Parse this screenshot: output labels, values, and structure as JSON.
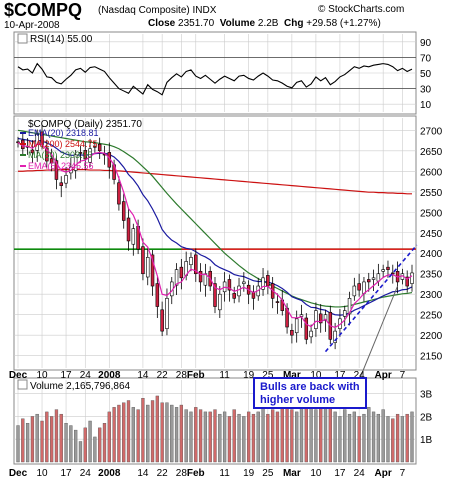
{
  "header": {
    "symbol": "$COMPQ",
    "name": "(Nasdaq Composite)",
    "exchange": "INDX",
    "date": "10-Apr-2008",
    "close_label": "Close",
    "close": "2351.70",
    "volume_label": "Volume",
    "volume": "2.2B",
    "chg_label": "Chg",
    "chg": "+29.58 (+1.27%)",
    "credit": "© StockCharts.com"
  },
  "rsi_panel": {
    "label": "RSI(14) 55.00",
    "ticks": [
      90,
      70,
      50,
      30,
      10
    ],
    "ylim": [
      0,
      100
    ]
  },
  "price_panel": {
    "label": "$COMPQ (Daily) 2351.70",
    "ticks": [
      2700,
      2650,
      2600,
      2550,
      2500,
      2450,
      2400,
      2350,
      2300,
      2250,
      2200,
      2150
    ],
    "ylim": [
      2120,
      2730
    ],
    "legend": [
      {
        "label": "EMA(20) 2318.81",
        "color": "#1a1aa0"
      },
      {
        "label": "MA(200) 2544.75",
        "color": "#cc1111"
      },
      {
        "label": "MA(50) 2303.95",
        "color": "#2d7a2d"
      },
      {
        "label": "EMA(5) 2345.56",
        "color": "#e020b0"
      }
    ],
    "annotation": "Bulls are back with higher volume"
  },
  "volume_panel": {
    "label": "Volume 2,165,796,864",
    "ticks": [
      "3B",
      "2B",
      "1B"
    ],
    "tick_values": [
      3,
      2,
      1
    ],
    "ylim": [
      0,
      3.6
    ]
  },
  "x_labels": [
    {
      "i": 0,
      "t": "Dec"
    },
    {
      "i": 5,
      "t": "10"
    },
    {
      "i": 10,
      "t": "17"
    },
    {
      "i": 14,
      "t": "24"
    },
    {
      "i": 19,
      "t": "2008"
    },
    {
      "i": 26,
      "t": "14"
    },
    {
      "i": 30,
      "t": "22"
    },
    {
      "i": 34,
      "t": "28"
    },
    {
      "i": 37,
      "t": "Feb"
    },
    {
      "i": 43,
      "t": "11"
    },
    {
      "i": 48,
      "t": "19"
    },
    {
      "i": 52,
      "t": "25"
    },
    {
      "i": 57,
      "t": "Mar"
    },
    {
      "i": 62,
      "t": "10"
    },
    {
      "i": 67,
      "t": "17"
    },
    {
      "i": 71,
      "t": "24"
    },
    {
      "i": 76,
      "t": "Apr"
    },
    {
      "i": 80,
      "t": "7"
    }
  ],
  "colors": {
    "up": "#ffffff",
    "down": "#cc2040",
    "grid": "#cccccc",
    "support": "#0d8a0d",
    "resistance": "#dd2222",
    "trend": "#1a1acc",
    "vol_up": "#9a9a9a",
    "vol_down": "#d06a6a"
  },
  "chart_data": {
    "type": "candlestick",
    "closes": [
      2670,
      2655,
      2660,
      2645,
      2690,
      2665,
      2625,
      2620,
      2580,
      2565,
      2590,
      2610,
      2640,
      2645,
      2630,
      2655,
      2660,
      2650,
      2640,
      2610,
      2580,
      2520,
      2480,
      2430,
      2460,
      2410,
      2350,
      2390,
      2320,
      2270,
      2210,
      2290,
      2330,
      2360,
      2340,
      2380,
      2390,
      2350,
      2330,
      2350,
      2320,
      2270,
      2300,
      2330,
      2310,
      2290,
      2320,
      2330,
      2300,
      2290,
      2320,
      2340,
      2320,
      2290,
      2280,
      2260,
      2220,
      2200,
      2240,
      2250,
      2190,
      2210,
      2260,
      2230,
      2250,
      2190,
      2210,
      2240,
      2260,
      2290,
      2320,
      2310,
      2330,
      2330,
      2340,
      2350,
      2360,
      2360,
      2350,
      2330,
      2350,
      2320,
      2352
    ],
    "resistance": 2410,
    "support_line_y": 2410,
    "trendline": {
      "from": {
        "i": 64,
        "y": 2160
      },
      "to": {
        "i": 83,
        "y": 2420
      }
    },
    "ema5": [
      2670,
      2662,
      2661,
      2656,
      2667,
      2666,
      2652,
      2641,
      2620,
      2602,
      2598,
      2602,
      2615,
      2625,
      2627,
      2636,
      2644,
      2646,
      2644,
      2633,
      2615,
      2583,
      2549,
      2509,
      2493,
      2465,
      2427,
      2415,
      2383,
      2345,
      2300,
      2297,
      2308,
      2325,
      2330,
      2347,
      2361,
      2357,
      2348,
      2349,
      2339,
      2316,
      2311,
      2317,
      2315,
      2307,
      2311,
      2317,
      2311,
      2304,
      2309,
      2319,
      2319,
      2309,
      2299,
      2286,
      2264,
      2243,
      2242,
      2245,
      2227,
      2221,
      2234,
      2233,
      2239,
      2223,
      2219,
      2226,
      2237,
      2255,
      2277,
      2288,
      2302,
      2311,
      2321,
      2331,
      2341,
      2347,
      2348,
      2342,
      2345,
      2337,
      2345
    ],
    "ema20": [
      2680,
      2678,
      2676,
      2673,
      2675,
      2674,
      2669,
      2664,
      2656,
      2647,
      2642,
      2639,
      2639,
      2640,
      2639,
      2641,
      2643,
      2644,
      2644,
      2641,
      2635,
      2624,
      2610,
      2592,
      2580,
      2564,
      2543,
      2528,
      2508,
      2485,
      2458,
      2443,
      2432,
      2425,
      2416,
      2412,
      2410,
      2404,
      2396,
      2391,
      2384,
      2372,
      2365,
      2360,
      2355,
      2348,
      2345,
      2343,
      2338,
      2333,
      2331,
      2331,
      2330,
      2326,
      2321,
      2314,
      2305,
      2294,
      2289,
      2285,
      2275,
      2268,
      2267,
      2263,
      2261,
      2254,
      2250,
      2249,
      2250,
      2254,
      2261,
      2266,
      2272,
      2278,
      2284,
      2290,
      2296,
      2301,
      2306,
      2307,
      2311,
      2312,
      2318
    ],
    "ma50": [
      2700,
      2698,
      2696,
      2694,
      2692,
      2690,
      2688,
      2686,
      2684,
      2682,
      2680,
      2678,
      2676,
      2674,
      2672,
      2671,
      2670,
      2668,
      2666,
      2664,
      2660,
      2655,
      2648,
      2640,
      2632,
      2622,
      2611,
      2600,
      2588,
      2574,
      2560,
      2546,
      2533,
      2520,
      2508,
      2496,
      2484,
      2472,
      2460,
      2448,
      2436,
      2424,
      2412,
      2400,
      2390,
      2380,
      2370,
      2361,
      2352,
      2345,
      2338,
      2332,
      2326,
      2320,
      2314,
      2308,
      2302,
      2296,
      2291,
      2287,
      2283,
      2279,
      2276,
      2273,
      2271,
      2270,
      2269,
      2269,
      2270,
      2272,
      2275,
      2278,
      2281,
      2284,
      2287,
      2290,
      2293,
      2295,
      2297,
      2299,
      2301,
      2302,
      2304
    ],
    "ma200": [
      2600,
      2600,
      2601,
      2601,
      2602,
      2602,
      2603,
      2603,
      2603,
      2604,
      2604,
      2604,
      2604,
      2604,
      2604,
      2603,
      2603,
      2603,
      2602,
      2602,
      2601,
      2601,
      2600,
      2599,
      2598,
      2597,
      2596,
      2595,
      2594,
      2593,
      2592,
      2591,
      2590,
      2589,
      2588,
      2587,
      2586,
      2585,
      2584,
      2583,
      2582,
      2581,
      2580,
      2579,
      2578,
      2577,
      2576,
      2575,
      2574,
      2573,
      2572,
      2571,
      2570,
      2569,
      2568,
      2567,
      2566,
      2565,
      2564,
      2563,
      2562,
      2561,
      2560,
      2559,
      2558,
      2557,
      2556,
      2555,
      2554,
      2553,
      2552,
      2551,
      2550,
      2549,
      2549,
      2548,
      2548,
      2547,
      2547,
      2546,
      2546,
      2545,
      2545
    ],
    "rsi": [
      58,
      54,
      55,
      50,
      62,
      55,
      45,
      44,
      38,
      36,
      42,
      47,
      54,
      56,
      51,
      57,
      58,
      55,
      52,
      44,
      37,
      30,
      27,
      24,
      33,
      28,
      23,
      35,
      29,
      26,
      22,
      38,
      44,
      49,
      45,
      52,
      54,
      46,
      43,
      47,
      42,
      37,
      42,
      46,
      43,
      40,
      46,
      47,
      43,
      41,
      46,
      50,
      46,
      41,
      40,
      37,
      33,
      31,
      38,
      40,
      32,
      36,
      45,
      40,
      44,
      35,
      39,
      45,
      48,
      53,
      58,
      56,
      59,
      58,
      60,
      61,
      62,
      61,
      58,
      53,
      56,
      52,
      55
    ],
    "volume": [
      1.6,
      1.9,
      1.7,
      2.0,
      2.1,
      1.8,
      2.2,
      2.0,
      2.3,
      2.1,
      1.7,
      1.6,
      1.4,
      0.9,
      1.5,
      1.8,
      1.1,
      1.5,
      1.7,
      2.2,
      2.4,
      2.5,
      2.6,
      2.7,
      2.4,
      2.3,
      2.8,
      2.5,
      2.7,
      2.9,
      2.6,
      2.6,
      2.5,
      2.4,
      2.5,
      2.3,
      2.2,
      2.4,
      2.3,
      2.2,
      2.2,
      2.3,
      2.1,
      2.2,
      2.0,
      2.3,
      2.1,
      2.0,
      2.2,
      2.1,
      2.2,
      2.4,
      2.1,
      2.3,
      2.2,
      2.5,
      2.6,
      2.3,
      2.2,
      2.5,
      2.4,
      2.6,
      2.3,
      2.6,
      2.4,
      2.8,
      2.2,
      2.0,
      2.3,
      2.1,
      2.2,
      2.0,
      2.1,
      2.4,
      2.2,
      2.1,
      2.3,
      2.0,
      1.9,
      2.1,
      2.0,
      2.1,
      2.2
    ]
  }
}
